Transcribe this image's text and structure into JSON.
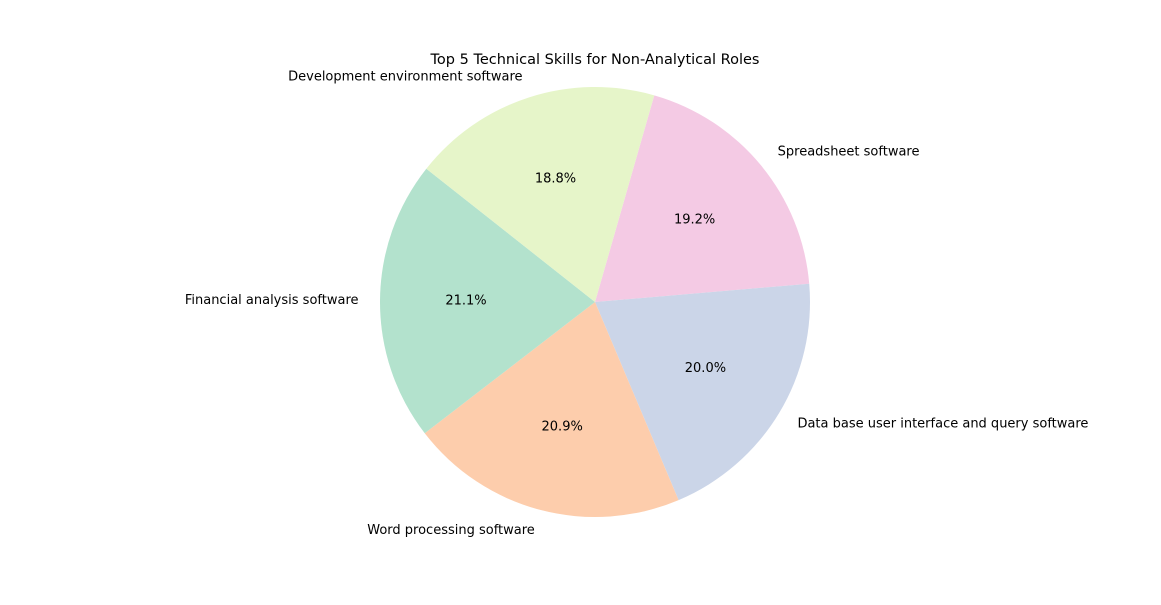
{
  "chart_data": {
    "type": "pie",
    "title": "Top 5 Technical Skills for Non-Analytical Roles",
    "slices": [
      {
        "label": "Spreadsheet software",
        "value": 19.2,
        "pct_label": "19.2%",
        "color": "#f4cae4"
      },
      {
        "label": "Data base user interface and query software",
        "value": 20.0,
        "pct_label": "20.0%",
        "color": "#cbd5e8"
      },
      {
        "label": "Word processing software",
        "value": 20.9,
        "pct_label": "20.9%",
        "color": "#fdcdac"
      },
      {
        "label": "Financial analysis software",
        "value": 21.1,
        "pct_label": "21.1%",
        "color": "#b3e2cd"
      },
      {
        "label": "Development environment software",
        "value": 18.8,
        "pct_label": "18.8%",
        "color": "#e6f5c9"
      }
    ],
    "start_angle_deg": 74,
    "direction": "clockwise",
    "grid": false,
    "legend": "none"
  }
}
